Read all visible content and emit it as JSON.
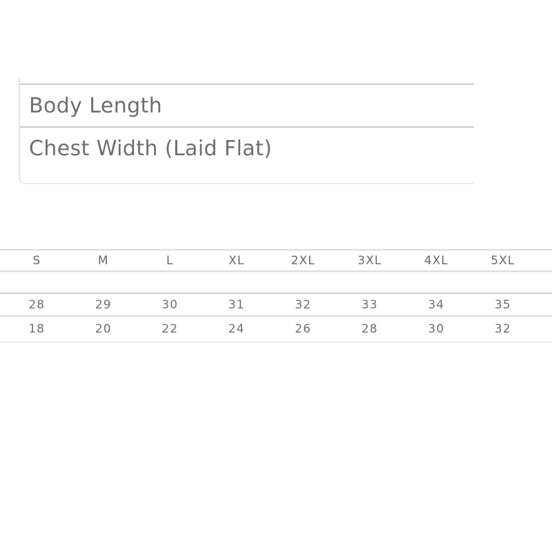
{
  "measurements_panel": {
    "rows": [
      {
        "label": "Body Length"
      },
      {
        "label": "Chest Width (Laid Flat)"
      }
    ]
  },
  "size_table": {
    "columns": [
      "S",
      "M",
      "L",
      "XL",
      "2XL",
      "3XL",
      "4XL",
      "5XL"
    ],
    "body_length_values": [
      "28",
      "29",
      "30",
      "31",
      "32",
      "33",
      "34",
      "35"
    ],
    "chest_width_values": [
      "18",
      "20",
      "22",
      "24",
      "26",
      "28",
      "30",
      "32"
    ]
  },
  "colors": {
    "text_gray": "#6e6e6e",
    "panel_divider": "#c9c9c9",
    "panel_edge": "#e4e4e4",
    "table_line": "#dcdcdc",
    "table_line_faint": "#eeeeee"
  }
}
